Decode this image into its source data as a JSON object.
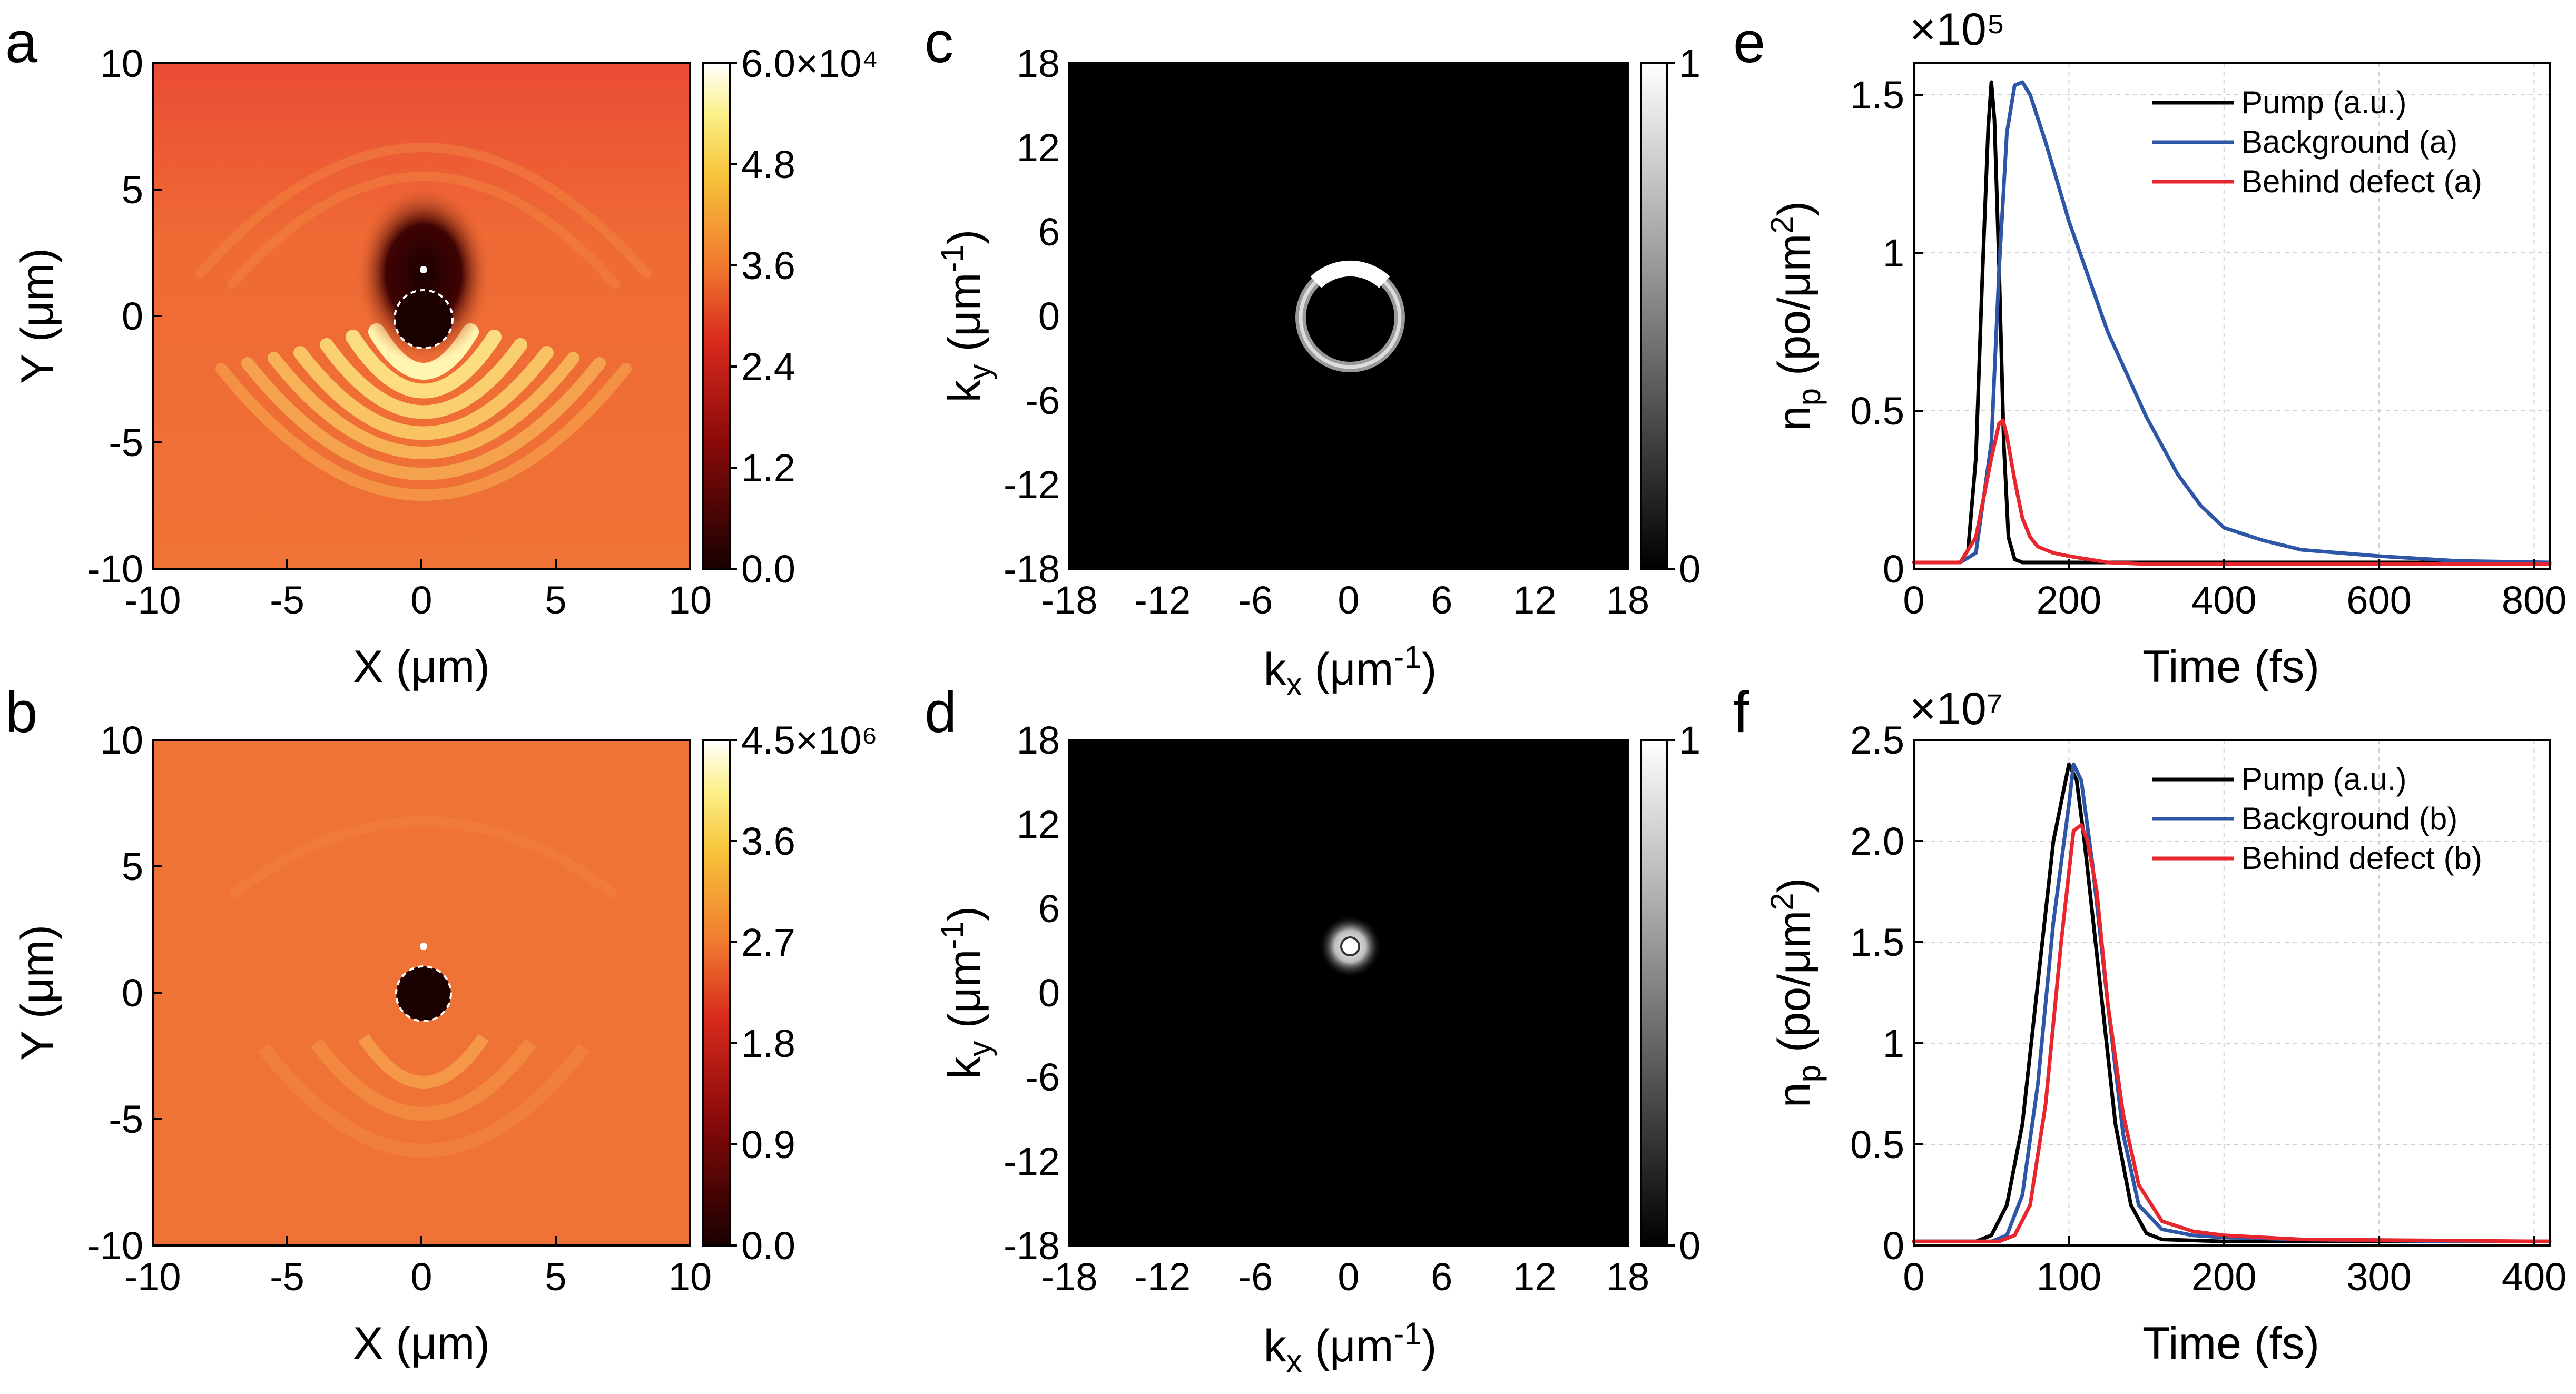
{
  "chart_data": [
    {
      "panel": "a",
      "type": "heatmap",
      "xlabel": "X (μm)",
      "ylabel": "Y (μm)",
      "xlim": [
        -10,
        10
      ],
      "ylim": [
        -10,
        10
      ],
      "xticks": [
        "-10",
        "-5",
        "0",
        "5",
        "10"
      ],
      "yticks": [
        "10",
        "5",
        "0",
        "-5",
        "-10"
      ],
      "colorbar": {
        "ticks": [
          "6.0×10⁴",
          "4.8",
          "3.6",
          "2.4",
          "1.2",
          "0.0"
        ],
        "range": [
          0,
          60000
        ],
        "colormap": "hot"
      }
    },
    {
      "panel": "b",
      "type": "heatmap",
      "xlabel": "X (μm)",
      "ylabel": "Y (μm)",
      "xlim": [
        -10,
        10
      ],
      "ylim": [
        -10,
        10
      ],
      "xticks": [
        "-10",
        "-5",
        "0",
        "5",
        "10"
      ],
      "yticks": [
        "10",
        "5",
        "0",
        "-5",
        "-10"
      ],
      "colorbar": {
        "ticks": [
          "4.5×10⁶",
          "3.6",
          "2.7",
          "1.8",
          "0.9",
          "0.0"
        ],
        "range": [
          0,
          4500000
        ],
        "colormap": "hot"
      }
    },
    {
      "panel": "c",
      "type": "heatmap",
      "xlabel": "kx (μm-1)",
      "ylabel": "ky (μm-1)",
      "xlim": [
        -18,
        18
      ],
      "ylim": [
        -18,
        18
      ],
      "xticks": [
        "-18",
        "-12",
        "-6",
        "0",
        "6",
        "12",
        "18"
      ],
      "yticks": [
        "18",
        "12",
        "6",
        "0",
        "-6",
        "-12",
        "-18"
      ],
      "colorbar": {
        "ticks": [
          "1",
          "0"
        ],
        "range": [
          0,
          1
        ],
        "colormap": "gray"
      }
    },
    {
      "panel": "d",
      "type": "heatmap",
      "xlabel": "kx (μm-1)",
      "ylabel": "ky (μm-1)",
      "xlim": [
        -18,
        18
      ],
      "ylim": [
        -18,
        18
      ],
      "xticks": [
        "-18",
        "-12",
        "-6",
        "0",
        "6",
        "12",
        "18"
      ],
      "yticks": [
        "18",
        "12",
        "6",
        "0",
        "-6",
        "-12",
        "-18"
      ],
      "colorbar": {
        "ticks": [
          "1",
          "0"
        ],
        "range": [
          0,
          1
        ],
        "colormap": "gray"
      }
    },
    {
      "panel": "e",
      "type": "line",
      "xlabel": "Time (fs)",
      "ylabel": "np (po/μm2)",
      "multiplier": "×10⁵",
      "xlim": [
        0,
        820
      ],
      "ylim": [
        0,
        1.6
      ],
      "xticks": [
        0,
        200,
        400,
        600,
        800
      ],
      "yticks": [
        0,
        0.5,
        1,
        1.5
      ],
      "ytick_labels": [
        "0",
        "0.5",
        "1",
        "1.5"
      ],
      "legend": "top-right",
      "series": [
        {
          "name": "Pump (a.u.)",
          "color": "#000000",
          "x": [
            0,
            60,
            70,
            80,
            88,
            96,
            100,
            104,
            110,
            116,
            122,
            130,
            140,
            200,
            820
          ],
          "y": [
            0.02,
            0.02,
            0.06,
            0.35,
            0.9,
            1.4,
            1.54,
            1.42,
            0.95,
            0.4,
            0.1,
            0.03,
            0.02,
            0.02,
            0.02
          ]
        },
        {
          "name": "Background (a)",
          "color": "#2e56a6",
          "x": [
            0,
            60,
            80,
            100,
            110,
            120,
            130,
            140,
            150,
            170,
            200,
            250,
            300,
            340,
            370,
            400,
            450,
            500,
            600,
            700,
            820
          ],
          "y": [
            0.02,
            0.02,
            0.05,
            0.4,
            0.95,
            1.38,
            1.53,
            1.54,
            1.5,
            1.35,
            1.1,
            0.75,
            0.48,
            0.3,
            0.2,
            0.13,
            0.09,
            0.06,
            0.04,
            0.025,
            0.02
          ]
        },
        {
          "name": "Behind defect (a)",
          "color": "#e8262d",
          "x": [
            0,
            60,
            80,
            100,
            110,
            115,
            120,
            130,
            140,
            150,
            160,
            180,
            200,
            250,
            300,
            820
          ],
          "y": [
            0.02,
            0.02,
            0.1,
            0.35,
            0.46,
            0.47,
            0.42,
            0.28,
            0.16,
            0.1,
            0.07,
            0.05,
            0.04,
            0.02,
            0.015,
            0.015
          ]
        }
      ]
    },
    {
      "panel": "f",
      "type": "line",
      "xlabel": "Time (fs)",
      "ylabel": "np (po/μm2)",
      "multiplier": "×10⁷",
      "xlim": [
        0,
        410
      ],
      "ylim": [
        0,
        2.5
      ],
      "xticks": [
        0,
        100,
        200,
        300,
        400
      ],
      "yticks": [
        0,
        0.5,
        1,
        1.5,
        2,
        2.5
      ],
      "ytick_labels": [
        "0",
        "0.5",
        "1",
        "1.5",
        "2.0",
        "2.5"
      ],
      "legend": "top-right",
      "series": [
        {
          "name": "Pump (a.u.)",
          "color": "#000000",
          "x": [
            0,
            40,
            50,
            60,
            70,
            80,
            90,
            100,
            105,
            110,
            120,
            130,
            140,
            150,
            160,
            200,
            410
          ],
          "y": [
            0.02,
            0.02,
            0.05,
            0.2,
            0.6,
            1.3,
            2.0,
            2.38,
            2.3,
            2.0,
            1.3,
            0.6,
            0.2,
            0.06,
            0.03,
            0.02,
            0.02
          ]
        },
        {
          "name": "Background (b)",
          "color": "#2e56a6",
          "x": [
            0,
            50,
            60,
            70,
            80,
            90,
            100,
            103,
            108,
            115,
            125,
            135,
            145,
            160,
            180,
            200,
            250,
            300,
            350,
            410
          ],
          "y": [
            0.02,
            0.02,
            0.05,
            0.25,
            0.8,
            1.6,
            2.18,
            2.38,
            2.3,
            1.9,
            1.2,
            0.55,
            0.2,
            0.08,
            0.05,
            0.04,
            0.03,
            0.025,
            0.02,
            0.02
          ]
        },
        {
          "name": "Behind defect (b)",
          "color": "#e8262d",
          "x": [
            0,
            55,
            65,
            75,
            85,
            95,
            103,
            108,
            112,
            118,
            125,
            135,
            145,
            160,
            180,
            200,
            250,
            410
          ],
          "y": [
            0.02,
            0.02,
            0.05,
            0.2,
            0.7,
            1.5,
            2.05,
            2.08,
            2.0,
            1.75,
            1.2,
            0.65,
            0.3,
            0.12,
            0.07,
            0.05,
            0.03,
            0.02
          ]
        }
      ]
    }
  ]
}
